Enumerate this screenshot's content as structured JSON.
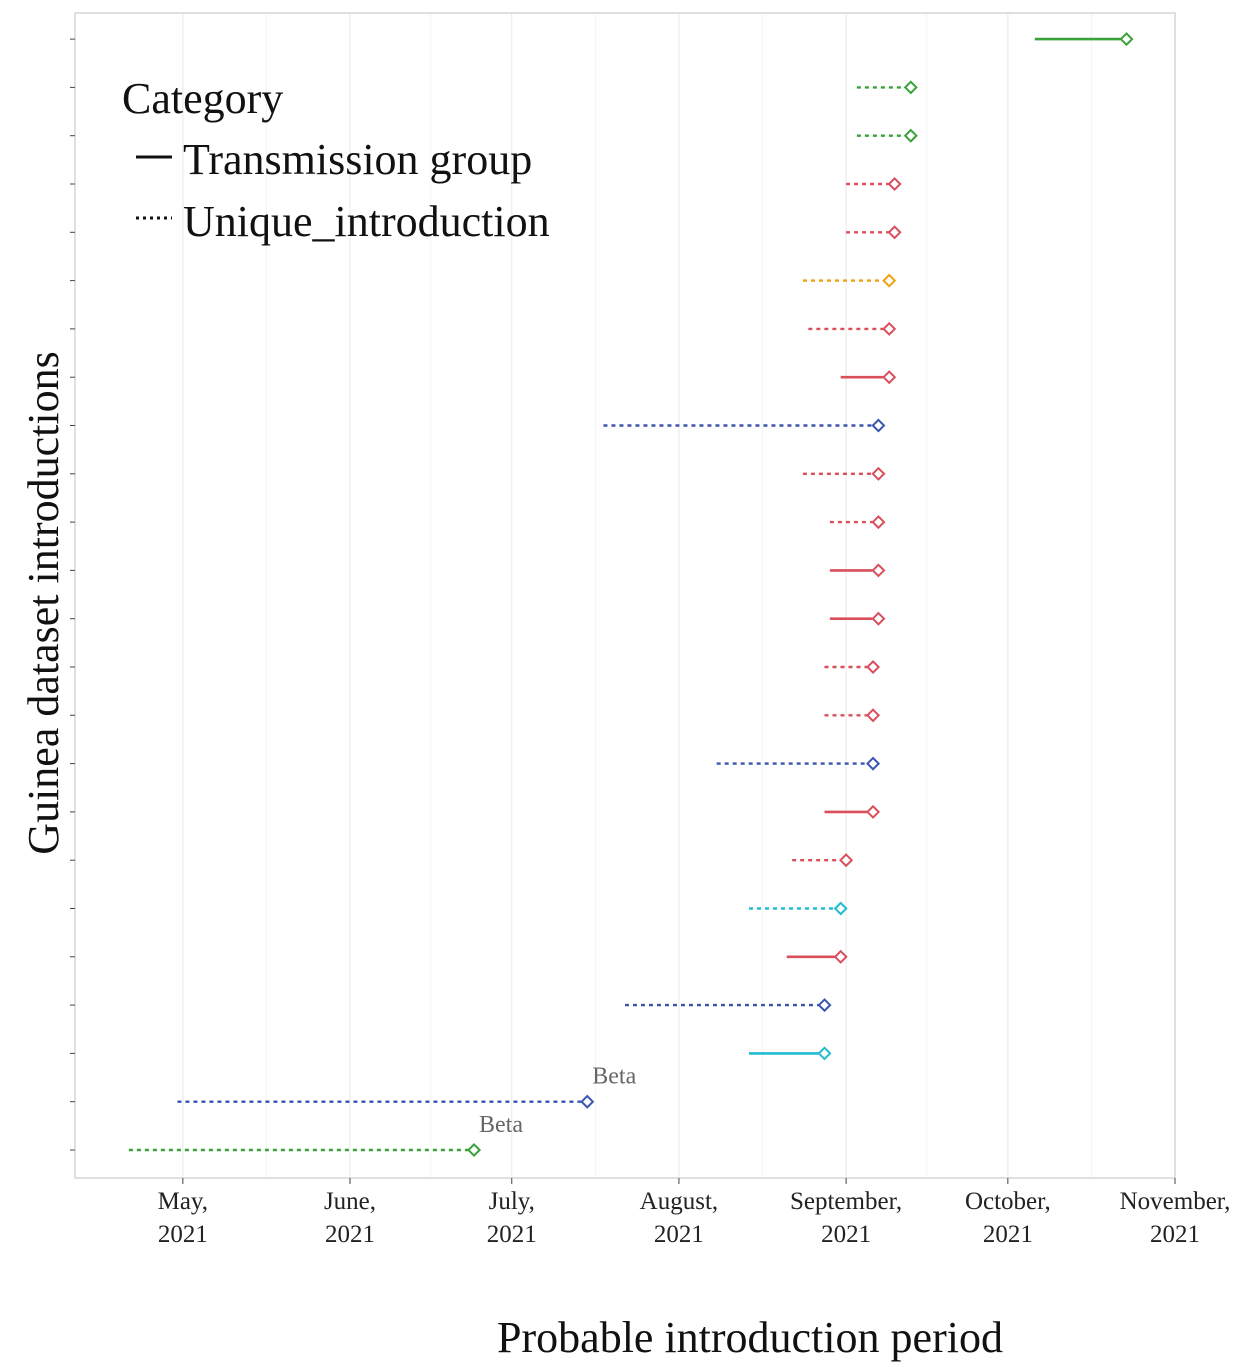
{
  "chart_data": {
    "type": "range-dot",
    "xlabel": "Probable introduction period",
    "ylabel": "Guinea dataset introductions",
    "xlim": [
      "2021-04-11",
      "2021-11-01"
    ],
    "x_ticks": [
      {
        "date": "2021-05-01",
        "label": [
          "May,",
          "2021"
        ]
      },
      {
        "date": "2021-06-01",
        "label": [
          "June,",
          "2021"
        ]
      },
      {
        "date": "2021-07-01",
        "label": [
          "July,",
          "2021"
        ]
      },
      {
        "date": "2021-08-01",
        "label": [
          "August,",
          "2021"
        ]
      },
      {
        "date": "2021-09-01",
        "label": [
          "September,",
          "2021"
        ]
      },
      {
        "date": "2021-10-01",
        "label": [
          "October,",
          "2021"
        ]
      },
      {
        "date": "2021-11-01",
        "label": [
          "November,",
          "2021"
        ]
      }
    ],
    "legend": {
      "title": "Category",
      "position": "top-left",
      "items": [
        {
          "label": "Transmission group",
          "linetype": "solid"
        },
        {
          "label": "Unique_introduction",
          "linetype": "dotted"
        }
      ]
    },
    "colors": {
      "green": "#3aa23a",
      "red": "#d94f5c",
      "orange": "#f0a30a",
      "blue": "#3a56b0",
      "cyan": "#22bcd0"
    },
    "series": [
      {
        "start": "2021-04-21",
        "end": "2021-06-24",
        "category": "Unique_introduction",
        "color": "green",
        "label": "Beta"
      },
      {
        "start": "2021-04-30",
        "end": "2021-07-15",
        "category": "Unique_introduction",
        "color": "blue",
        "label": "Beta"
      },
      {
        "start": "2021-08-14",
        "end": "2021-08-28",
        "category": "Transmission group",
        "color": "cyan"
      },
      {
        "start": "2021-07-22",
        "end": "2021-08-28",
        "category": "Unique_introduction",
        "color": "blue"
      },
      {
        "start": "2021-08-21",
        "end": "2021-08-31",
        "category": "Transmission group",
        "color": "red"
      },
      {
        "start": "2021-08-14",
        "end": "2021-08-31",
        "category": "Unique_introduction",
        "color": "cyan"
      },
      {
        "start": "2021-08-22",
        "end": "2021-09-01",
        "category": "Unique_introduction",
        "color": "red"
      },
      {
        "start": "2021-08-28",
        "end": "2021-09-06",
        "category": "Transmission group",
        "color": "red"
      },
      {
        "start": "2021-08-08",
        "end": "2021-09-06",
        "category": "Unique_introduction",
        "color": "blue"
      },
      {
        "start": "2021-08-28",
        "end": "2021-09-06",
        "category": "Unique_introduction",
        "color": "red"
      },
      {
        "start": "2021-08-28",
        "end": "2021-09-06",
        "category": "Unique_introduction",
        "color": "red"
      },
      {
        "start": "2021-08-29",
        "end": "2021-09-07",
        "category": "Transmission group",
        "color": "red"
      },
      {
        "start": "2021-08-29",
        "end": "2021-09-07",
        "category": "Transmission group",
        "color": "red"
      },
      {
        "start": "2021-08-29",
        "end": "2021-09-07",
        "category": "Unique_introduction",
        "color": "red"
      },
      {
        "start": "2021-08-24",
        "end": "2021-09-07",
        "category": "Unique_introduction",
        "color": "red"
      },
      {
        "start": "2021-07-18",
        "end": "2021-09-07",
        "category": "Unique_introduction",
        "color": "blue"
      },
      {
        "start": "2021-08-31",
        "end": "2021-09-09",
        "category": "Transmission group",
        "color": "red"
      },
      {
        "start": "2021-08-25",
        "end": "2021-09-09",
        "category": "Unique_introduction",
        "color": "red"
      },
      {
        "start": "2021-08-24",
        "end": "2021-09-09",
        "category": "Unique_introduction",
        "color": "orange"
      },
      {
        "start": "2021-09-01",
        "end": "2021-09-10",
        "category": "Unique_introduction",
        "color": "red"
      },
      {
        "start": "2021-09-01",
        "end": "2021-09-10",
        "category": "Unique_introduction",
        "color": "red"
      },
      {
        "start": "2021-09-03",
        "end": "2021-09-13",
        "category": "Unique_introduction",
        "color": "green"
      },
      {
        "start": "2021-09-03",
        "end": "2021-09-13",
        "category": "Unique_introduction",
        "color": "green"
      },
      {
        "start": "2021-10-06",
        "end": "2021-10-23",
        "category": "Transmission group",
        "color": "green"
      }
    ]
  }
}
